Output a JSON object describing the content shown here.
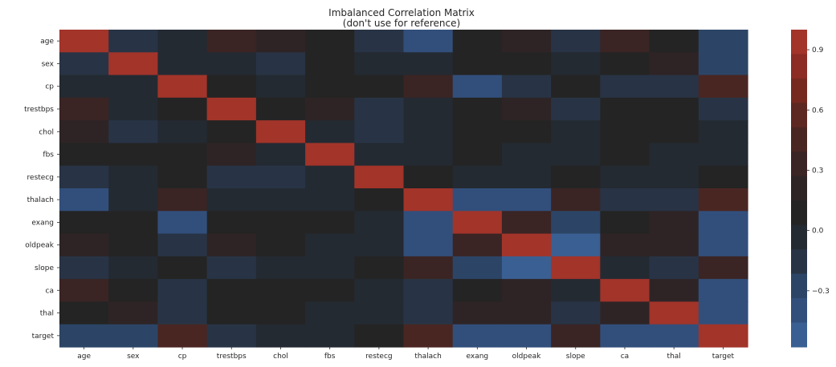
{
  "chart_data": {
    "type": "heatmap",
    "title": "Imbalanced Correlation Matrix",
    "subtitle": "(don't use for reference)",
    "variables": [
      "age",
      "sex",
      "cp",
      "trestbps",
      "chol",
      "fbs",
      "restecg",
      "thalach",
      "exang",
      "oldpeak",
      "slope",
      "ca",
      "thal",
      "target"
    ],
    "values": [
      [
        1.0,
        -0.1,
        -0.07,
        0.28,
        0.21,
        0.12,
        -0.12,
        -0.4,
        0.1,
        0.21,
        -0.17,
        0.28,
        0.07,
        -0.23
      ],
      [
        -0.1,
        1.0,
        -0.05,
        -0.06,
        -0.2,
        0.05,
        -0.06,
        -0.04,
        0.14,
        0.1,
        -0.03,
        0.12,
        0.21,
        -0.28
      ],
      [
        -0.07,
        -0.05,
        1.0,
        0.05,
        -0.08,
        0.09,
        0.04,
        0.3,
        -0.39,
        -0.15,
        0.12,
        -0.18,
        -0.16,
        0.43
      ],
      [
        0.28,
        -0.06,
        0.05,
        1.0,
        0.12,
        0.18,
        -0.11,
        -0.05,
        0.07,
        0.19,
        -0.12,
        0.1,
        0.06,
        -0.14
      ],
      [
        0.21,
        -0.2,
        -0.08,
        0.12,
        1.0,
        0.01,
        -0.15,
        -0.01,
        0.07,
        0.05,
        -0.0,
        0.07,
        0.1,
        -0.09
      ],
      [
        0.12,
        0.05,
        0.09,
        0.18,
        0.01,
        1.0,
        -0.08,
        -0.01,
        0.03,
        0.01,
        -0.06,
        0.14,
        -0.03,
        -0.03
      ],
      [
        -0.12,
        -0.06,
        0.04,
        -0.11,
        -0.15,
        -0.08,
        1.0,
        0.04,
        -0.07,
        -0.06,
        0.09,
        -0.07,
        -0.01,
        0.14
      ],
      [
        -0.4,
        -0.04,
        0.3,
        -0.05,
        -0.01,
        -0.01,
        0.04,
        1.0,
        -0.38,
        -0.34,
        0.39,
        -0.21,
        -0.1,
        0.42
      ],
      [
        0.1,
        0.14,
        -0.39,
        0.07,
        0.07,
        0.03,
        -0.07,
        -0.38,
        1.0,
        0.29,
        -0.26,
        0.12,
        0.21,
        -0.44
      ],
      [
        0.21,
        0.1,
        -0.15,
        0.19,
        0.05,
        0.01,
        -0.06,
        -0.34,
        0.29,
        1.0,
        -0.58,
        0.22,
        0.21,
        -0.43
      ],
      [
        -0.17,
        -0.03,
        0.12,
        -0.12,
        -0.0,
        -0.06,
        0.09,
        0.39,
        -0.26,
        -0.58,
        1.0,
        -0.08,
        -0.1,
        0.35
      ],
      [
        0.28,
        0.12,
        -0.18,
        0.1,
        0.07,
        0.14,
        -0.07,
        -0.21,
        0.12,
        0.22,
        -0.08,
        1.0,
        0.15,
        -0.39
      ],
      [
        0.07,
        0.21,
        -0.16,
        0.06,
        0.1,
        -0.03,
        -0.01,
        -0.1,
        0.21,
        0.21,
        -0.1,
        0.15,
        1.0,
        -0.34
      ],
      [
        -0.23,
        -0.28,
        0.43,
        -0.14,
        -0.09,
        -0.03,
        0.14,
        0.42,
        -0.44,
        -0.43,
        0.35,
        -0.39,
        -0.34,
        1.0
      ]
    ],
    "colorbar": {
      "vmin": -0.58,
      "vmax": 1.0,
      "ticks": [
        0.9,
        0.6,
        0.3,
        0.0,
        -0.3
      ],
      "tick_labels": [
        "0.9",
        "0.6",
        "0.3",
        "0.0",
        "−0.3"
      ],
      "colors": [
        "#3a5f92",
        "#324f7b",
        "#2c4566",
        "#283445",
        "#242a32",
        "#242424",
        "#2e2426",
        "#3a2524",
        "#4a2622",
        "#5e2822",
        "#76291f",
        "#8c2c24",
        "#a2342a"
      ]
    }
  }
}
